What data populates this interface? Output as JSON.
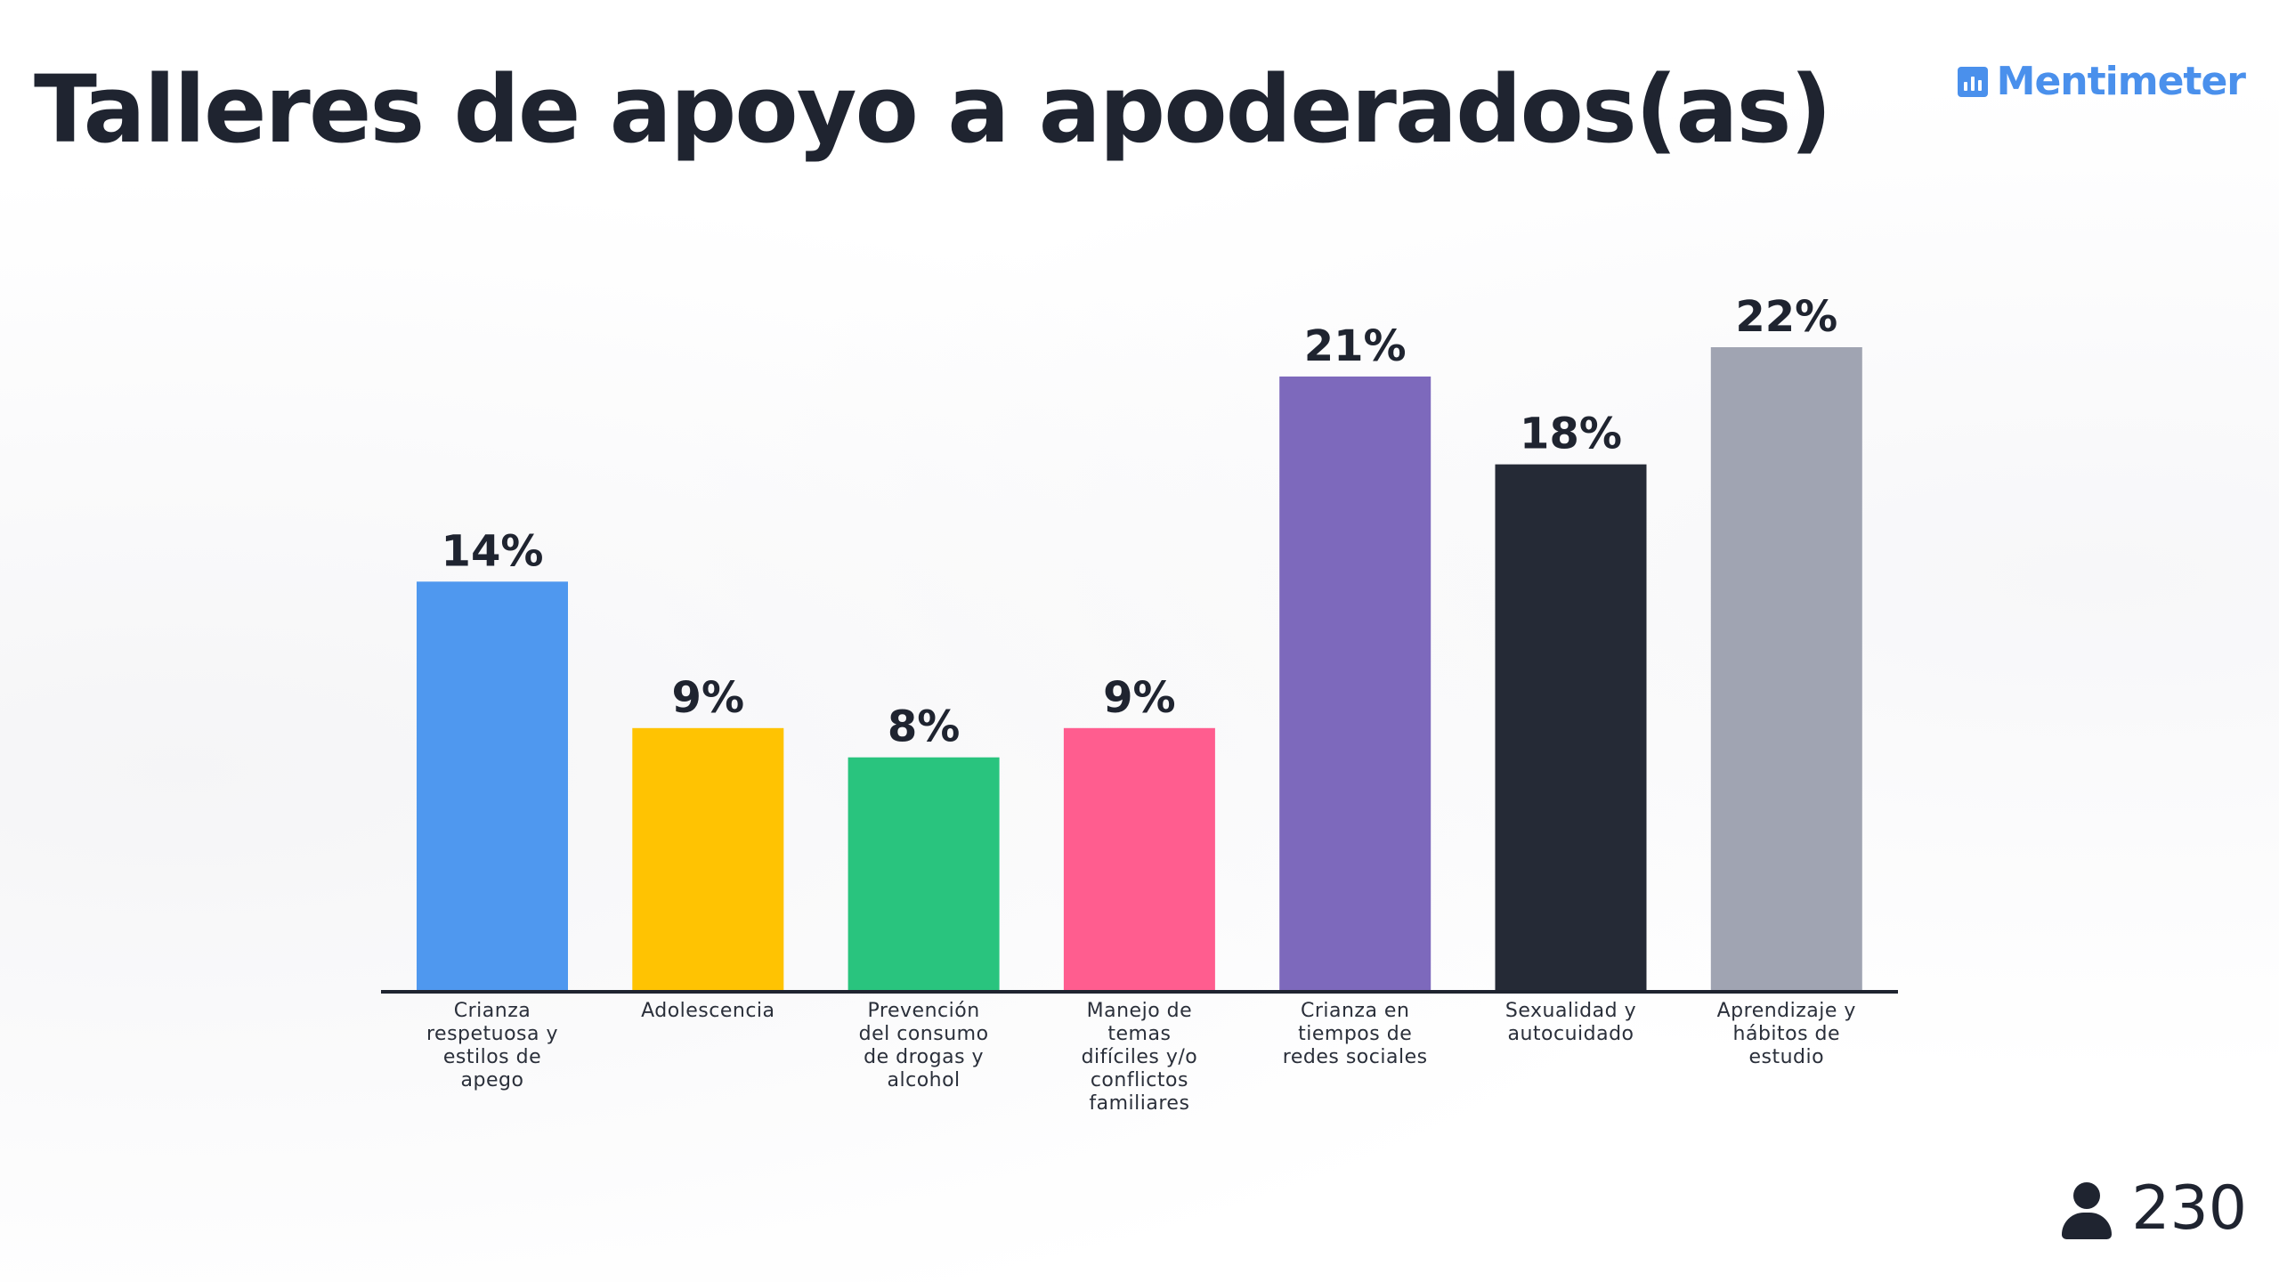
{
  "slide": {
    "title": "Talleres de apoyo a apoderados(as)",
    "brand": "Mentimeter",
    "participants": "230"
  },
  "icons": {
    "brand": "mentimeter-logo-icon",
    "participants": "person-icon"
  },
  "chart_data": {
    "type": "bar",
    "categories": [
      "Crianza respetuosa y estilos de apego",
      "Adolescencia",
      "Prevención del consumo de drogas y alcohol",
      "Manejo de temas difíciles y/o conflictos familiares",
      "Crianza en tiempos de redes sociales",
      "Sexualidad y autocuidado",
      "Aprendizaje y hábitos de estudio"
    ],
    "category_lines": [
      [
        "Crianza",
        "respetuosa y",
        "estilos de",
        "apego"
      ],
      [
        "Adolescencia"
      ],
      [
        "Prevención",
        "del consumo",
        "de drogas y",
        "alcohol"
      ],
      [
        "Manejo de",
        "temas",
        "difíciles y/o",
        "conflictos",
        "familiares"
      ],
      [
        "Crianza en",
        "tiempos de",
        "redes sociales"
      ],
      [
        "Sexualidad y",
        "autocuidado"
      ],
      [
        "Aprendizaje y",
        "hábitos de",
        "estudio"
      ]
    ],
    "values": [
      14,
      9,
      8,
      9,
      21,
      18,
      22
    ],
    "value_labels": [
      "14%",
      "9%",
      "8%",
      "9%",
      "21%",
      "18%",
      "22%"
    ],
    "colors": [
      "#4f98ef",
      "#ffc302",
      "#29c47e",
      "#ff5d8f",
      "#7d69bc",
      "#252a36",
      "#a0a4b2"
    ],
    "ylim": [
      0,
      22
    ],
    "grid": false,
    "legend": "none"
  }
}
